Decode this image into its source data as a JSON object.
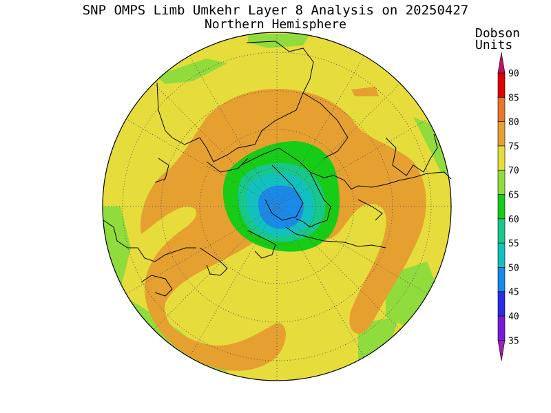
{
  "title": "SNP OMPS Limb Umkehr Layer 8 Analysis on 20250427",
  "subtitle": "Northern Hemisphere",
  "units_line1": "Dobson",
  "units_line2": "Units",
  "colorbar": {
    "ticks": [
      "35",
      "40",
      "45",
      "50",
      "55",
      "60",
      "65",
      "70",
      "75",
      "80",
      "85",
      "90"
    ],
    "bands": [
      {
        "range": [
          30,
          35
        ],
        "color": "#9a1fbf"
      },
      {
        "range": [
          35,
          40
        ],
        "color": "#7a1ad6"
      },
      {
        "range": [
          40,
          45
        ],
        "color": "#2b2be6"
      },
      {
        "range": [
          45,
          50
        ],
        "color": "#1a8ae8"
      },
      {
        "range": [
          50,
          55
        ],
        "color": "#12c0c0"
      },
      {
        "range": [
          55,
          60
        ],
        "color": "#16c88c"
      },
      {
        "range": [
          60,
          65
        ],
        "color": "#16cc16"
      },
      {
        "range": [
          65,
          70
        ],
        "color": "#90dc3c"
      },
      {
        "range": [
          70,
          75
        ],
        "color": "#e6dc3c"
      },
      {
        "range": [
          75,
          80
        ],
        "color": "#e6a030"
      },
      {
        "range": [
          80,
          85
        ],
        "color": "#e6782a"
      },
      {
        "range": [
          85,
          90
        ],
        "color": "#e00000"
      },
      {
        "range": [
          90,
          95
        ],
        "color": "#c0106a"
      }
    ]
  },
  "map_colors": {
    "base": "#e6dc3c",
    "high": "#e6a030",
    "mid": "#90dc3c",
    "green": "#16cc16",
    "teal": "#16c88c",
    "cyan": "#12c0c0",
    "blue": "#1a8ae8"
  }
}
